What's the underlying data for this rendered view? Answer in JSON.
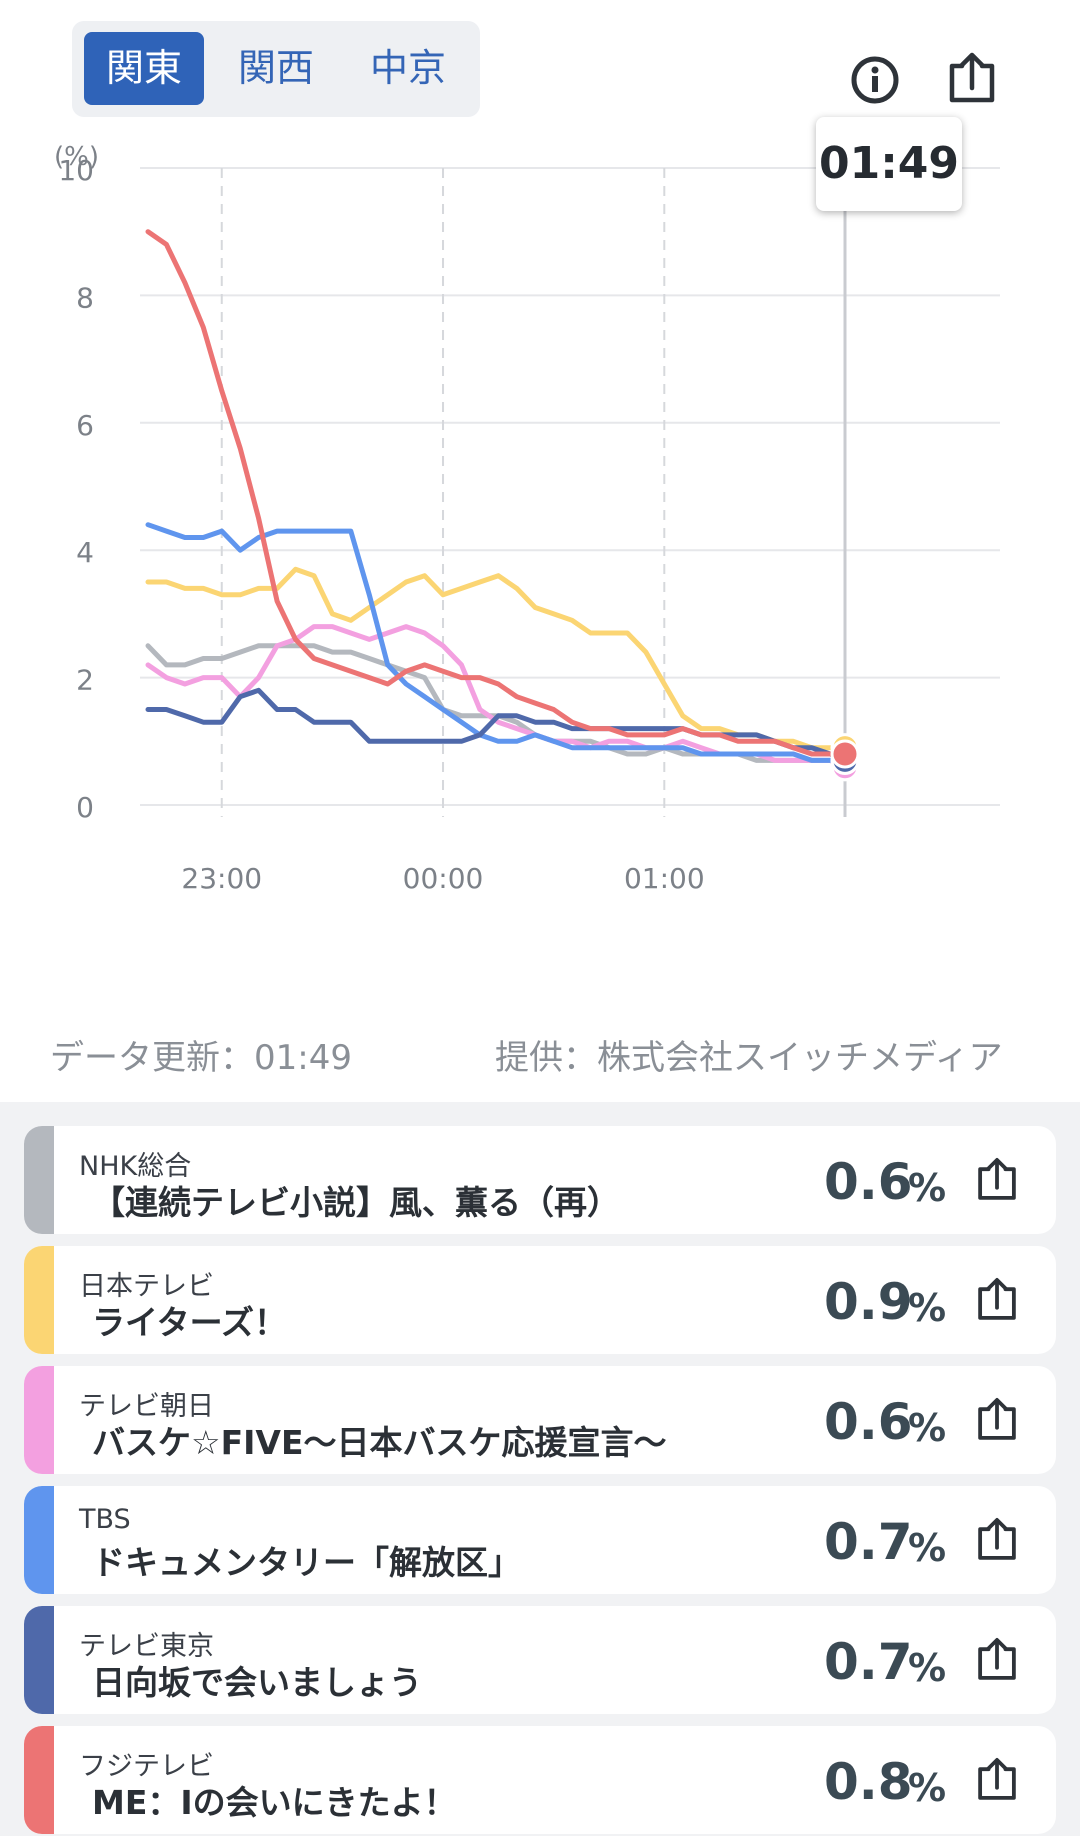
{
  "region_tabs": [
    {
      "label": "関東",
      "active": true
    },
    {
      "label": "関西",
      "active": false
    },
    {
      "label": "中京",
      "active": false
    }
  ],
  "icons": {
    "info": "info-icon",
    "share": "share-icon"
  },
  "tooltip": {
    "time": "01:49"
  },
  "chart_data": {
    "type": "line",
    "ylabel": "(%)",
    "ylim": [
      0,
      10
    ],
    "yticks": [
      "0",
      "2",
      "4",
      "6",
      "8",
      "10"
    ],
    "xticks": [
      "23:00",
      "00:00",
      "01:00"
    ],
    "x": [
      "22:40",
      "22:45",
      "22:50",
      "22:55",
      "23:00",
      "23:05",
      "23:10",
      "23:15",
      "23:20",
      "23:25",
      "23:30",
      "23:35",
      "23:40",
      "23:45",
      "23:50",
      "23:55",
      "00:00",
      "00:05",
      "00:10",
      "00:15",
      "00:20",
      "00:25",
      "00:30",
      "00:35",
      "00:40",
      "00:45",
      "00:50",
      "00:55",
      "01:00",
      "01:05",
      "01:10",
      "01:15",
      "01:20",
      "01:25",
      "01:30",
      "01:35",
      "01:40",
      "01:45",
      "01:49"
    ],
    "series": [
      {
        "name": "NHK総合",
        "color": "#b4b8be",
        "values": [
          2.5,
          2.2,
          2.2,
          2.3,
          2.3,
          2.4,
          2.5,
          2.5,
          2.5,
          2.5,
          2.4,
          2.4,
          2.3,
          2.2,
          2.1,
          2.0,
          1.5,
          1.4,
          1.4,
          1.4,
          1.3,
          1.1,
          1.0,
          1.0,
          1.0,
          0.9,
          0.8,
          0.8,
          0.9,
          0.8,
          0.8,
          0.8,
          0.8,
          0.7,
          0.7,
          0.7,
          0.7,
          0.7,
          0.6
        ]
      },
      {
        "name": "日本テレビ",
        "color": "#fbd573",
        "values": [
          3.5,
          3.5,
          3.4,
          3.4,
          3.3,
          3.3,
          3.4,
          3.4,
          3.7,
          3.6,
          3.0,
          2.9,
          3.1,
          3.3,
          3.5,
          3.6,
          3.3,
          3.4,
          3.5,
          3.6,
          3.4,
          3.1,
          3.0,
          2.9,
          2.7,
          2.7,
          2.7,
          2.4,
          1.9,
          1.4,
          1.2,
          1.2,
          1.1,
          1.1,
          1.0,
          1.0,
          0.9,
          0.9,
          0.9
        ]
      },
      {
        "name": "テレビ朝日",
        "color": "#f3a0e0",
        "values": [
          2.2,
          2.0,
          1.9,
          2.0,
          2.0,
          1.7,
          2.0,
          2.5,
          2.6,
          2.8,
          2.8,
          2.7,
          2.6,
          2.7,
          2.8,
          2.7,
          2.5,
          2.2,
          1.5,
          1.3,
          1.2,
          1.1,
          1.0,
          1.0,
          0.9,
          1.0,
          1.0,
          0.9,
          0.9,
          1.0,
          0.9,
          0.8,
          0.8,
          0.8,
          0.7,
          0.7,
          0.7,
          0.7,
          0.6
        ]
      },
      {
        "name": "TBS",
        "color": "#5f95ee",
        "values": [
          4.4,
          4.3,
          4.2,
          4.2,
          4.3,
          4.0,
          4.2,
          4.3,
          4.3,
          4.3,
          4.3,
          4.3,
          3.3,
          2.2,
          1.9,
          1.7,
          1.5,
          1.3,
          1.1,
          1.0,
          1.0,
          1.1,
          1.0,
          0.9,
          0.9,
          0.9,
          0.9,
          0.9,
          0.9,
          0.9,
          0.8,
          0.8,
          0.8,
          0.8,
          0.8,
          0.8,
          0.7,
          0.7,
          0.7
        ]
      },
      {
        "name": "テレビ東京",
        "color": "#4f69aa",
        "values": [
          1.5,
          1.5,
          1.4,
          1.3,
          1.3,
          1.7,
          1.8,
          1.5,
          1.5,
          1.3,
          1.3,
          1.3,
          1.0,
          1.0,
          1.0,
          1.0,
          1.0,
          1.0,
          1.1,
          1.4,
          1.4,
          1.3,
          1.3,
          1.2,
          1.2,
          1.2,
          1.2,
          1.2,
          1.2,
          1.2,
          1.1,
          1.1,
          1.1,
          1.1,
          1.0,
          0.9,
          0.9,
          0.8,
          0.7
        ]
      },
      {
        "name": "フジテレビ",
        "color": "#ec7474",
        "values": [
          9.0,
          8.8,
          8.2,
          7.5,
          6.5,
          5.6,
          4.5,
          3.2,
          2.6,
          2.3,
          2.2,
          2.1,
          2.0,
          1.9,
          2.1,
          2.2,
          2.1,
          2.0,
          2.0,
          1.9,
          1.7,
          1.6,
          1.5,
          1.3,
          1.2,
          1.2,
          1.1,
          1.1,
          1.1,
          1.2,
          1.1,
          1.1,
          1.0,
          1.0,
          1.0,
          0.9,
          0.8,
          0.8,
          0.8
        ]
      }
    ]
  },
  "meta": {
    "updated": "データ更新：01:49",
    "provider": "提供：株式会社スイッチメディア"
  },
  "rows": [
    {
      "station": "NHK総合",
      "program": "【連続テレビ小説】風、薫る（再）",
      "value": "0.6",
      "unit": "%",
      "color": "#b4b8be"
    },
    {
      "station": "日本テレビ",
      "program": "ライターズ！",
      "value": "0.9",
      "unit": "%",
      "color": "#fbd573"
    },
    {
      "station": "テレビ朝日",
      "program": "バスケ☆FIVE〜日本バスケ応援宣言〜",
      "value": "0.6",
      "unit": "%",
      "color": "#f3a0e0"
    },
    {
      "station": "TBS",
      "program": "ドキュメンタリー「解放区」",
      "value": "0.7",
      "unit": "%",
      "color": "#5f95ee"
    },
    {
      "station": "テレビ東京",
      "program": "日向坂で会いましょう",
      "value": "0.7",
      "unit": "%",
      "color": "#4f69aa"
    },
    {
      "station": "フジテレビ",
      "program": "ME：Iの会いにきたよ！",
      "value": "0.8",
      "unit": "%",
      "color": "#ec7474"
    }
  ]
}
